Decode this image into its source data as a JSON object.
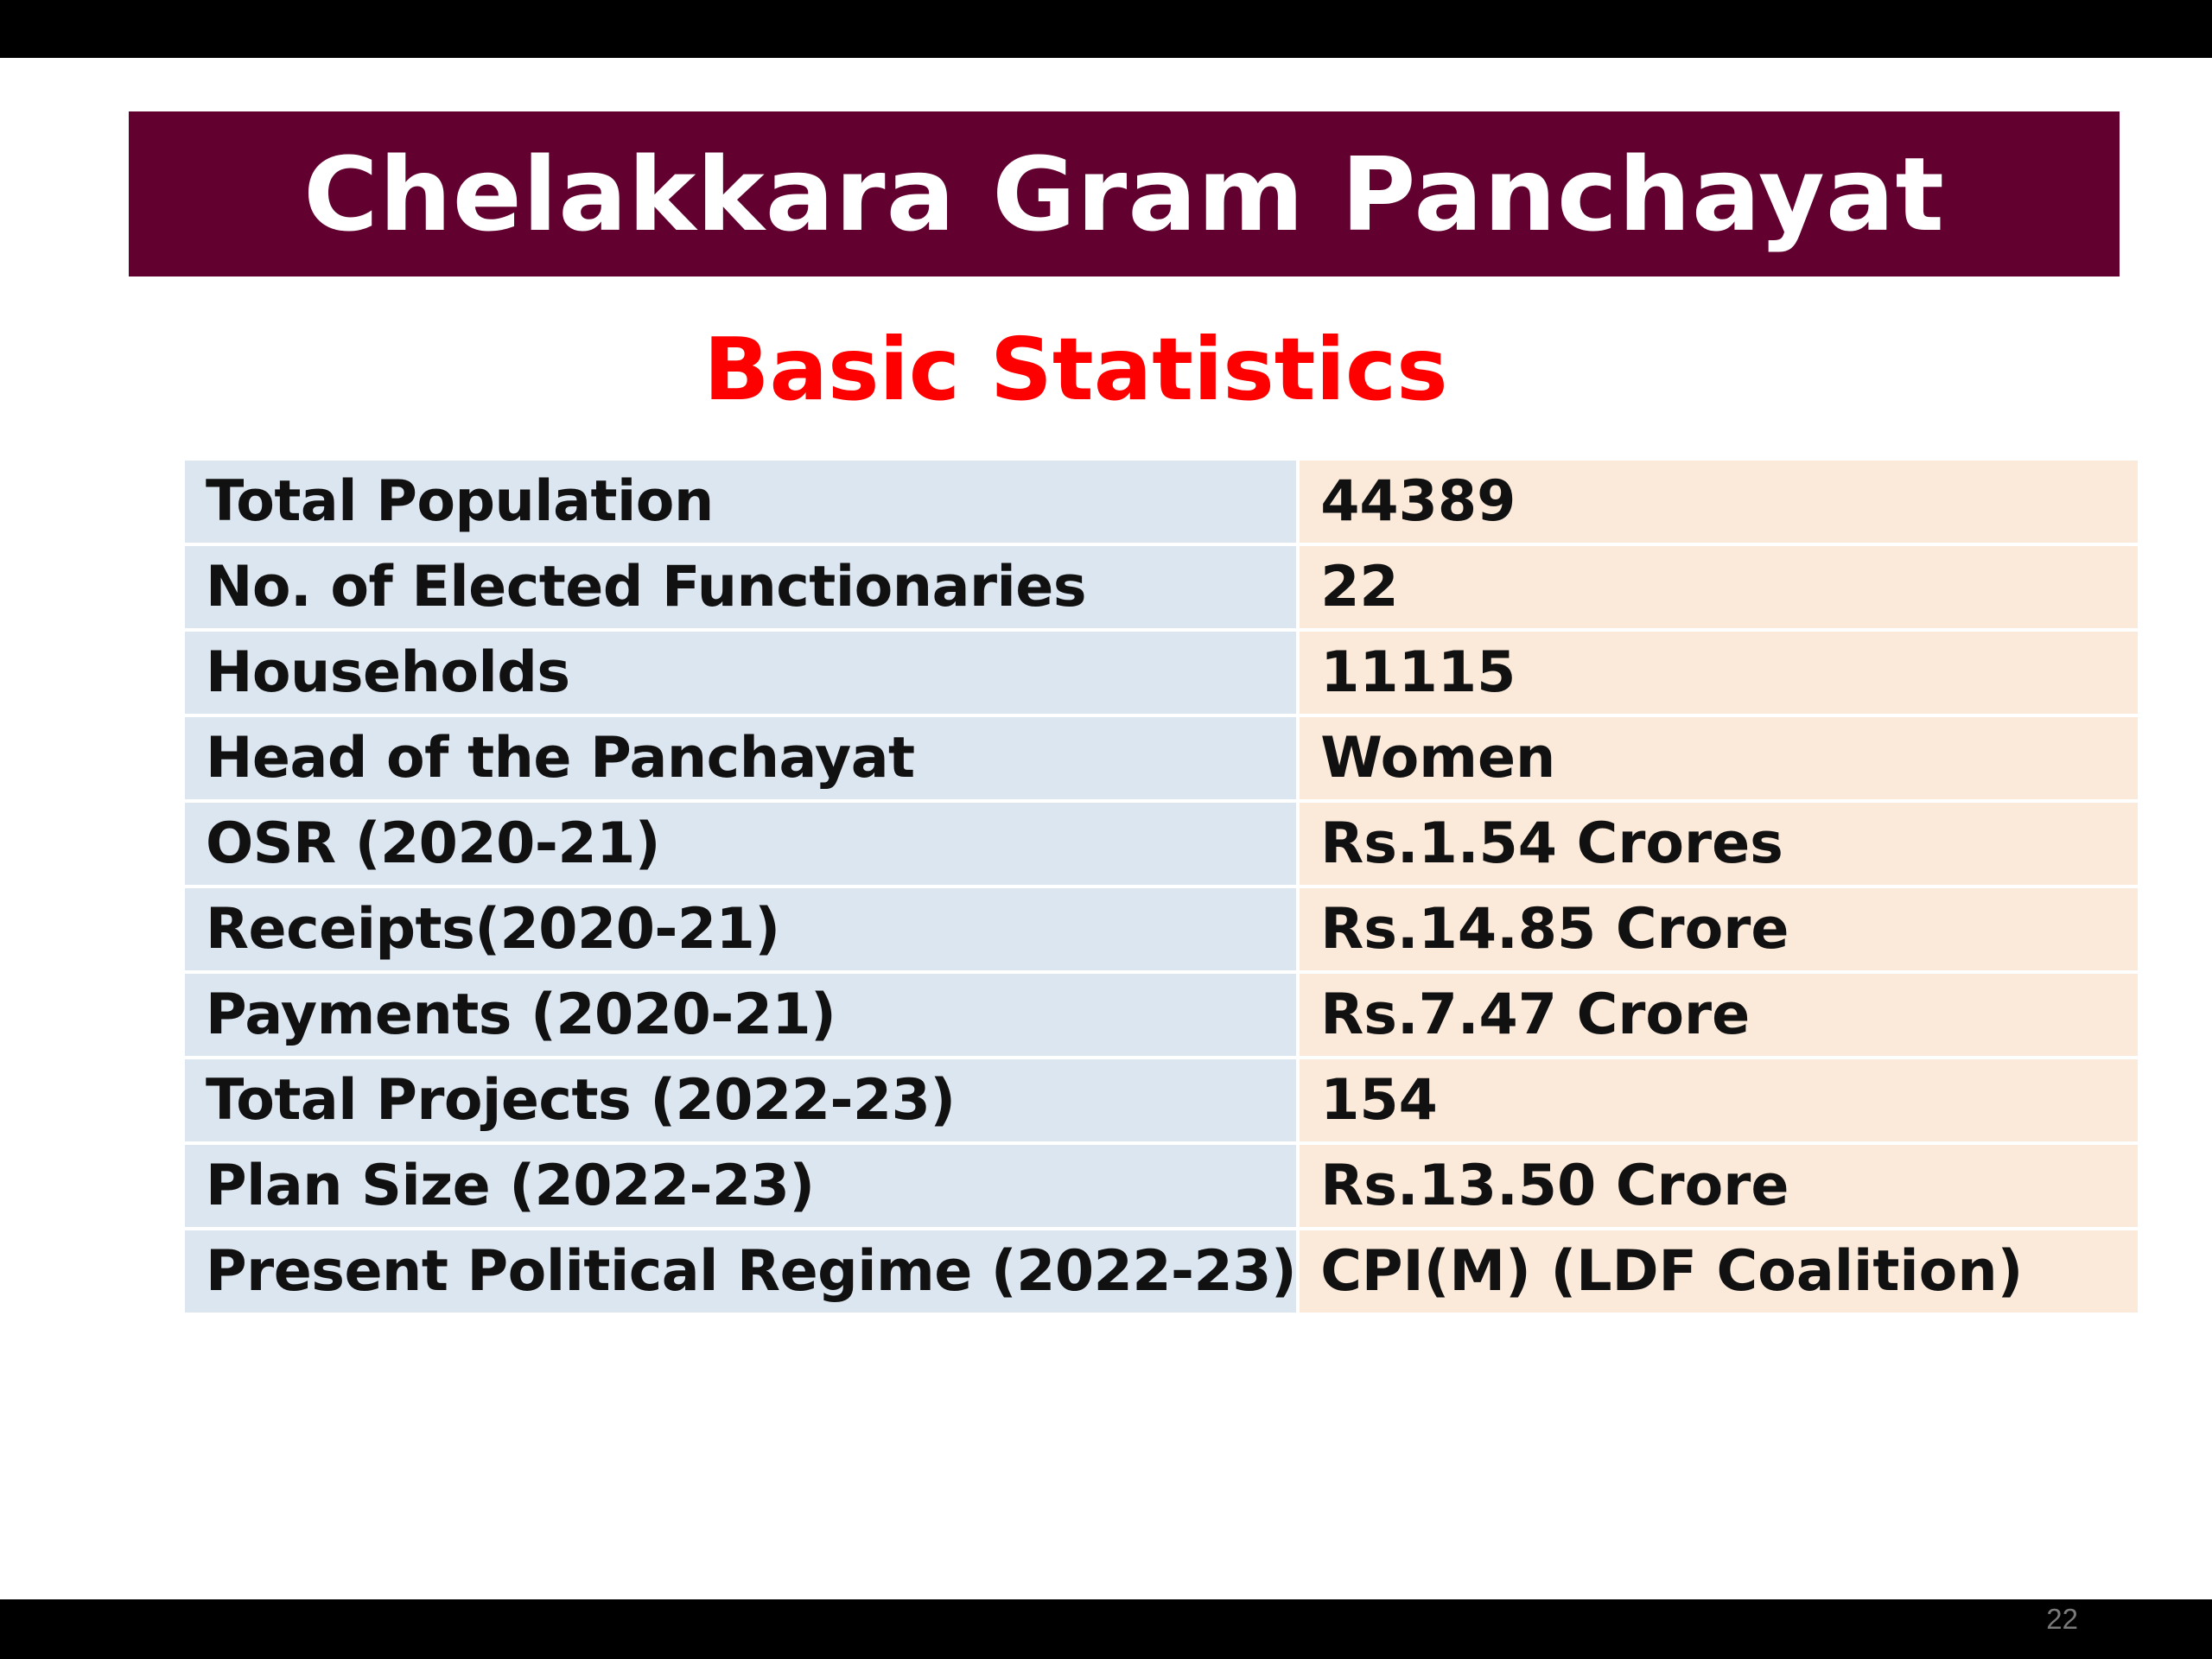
{
  "slide": {
    "title": "Chelakkara Gram Panchayat",
    "subtitle": "Basic Statistics",
    "page_number": "22"
  },
  "colors": {
    "title_banner": "#620030",
    "subtitle_text": "#ff0000",
    "label_cell": "#dce6f1",
    "value_cell": "#fbe9da"
  },
  "stats": [
    {
      "label": "Total Population",
      "value": "44389"
    },
    {
      "label": "No. of Elected Functionaries",
      "value": "22"
    },
    {
      "label": "Households",
      "value": "11115"
    },
    {
      "label": "Head of the Panchayat",
      "value": "Women"
    },
    {
      "label": "OSR (2020-21)",
      "value": "Rs.1.54 Crores"
    },
    {
      "label": "Receipts(2020-21)",
      "value": "Rs.14.85 Crore"
    },
    {
      "label": "Payments (2020-21)",
      "value": "Rs.7.47 Crore"
    },
    {
      "label": "Total Projects (2022-23)",
      "value": "154"
    },
    {
      "label": "Plan Size (2022-23)",
      "value": "Rs.13.50 Crore"
    },
    {
      "label": "Present Political Regime (2022-23)",
      "value": "CPI(M) (LDF Coalition)"
    }
  ]
}
